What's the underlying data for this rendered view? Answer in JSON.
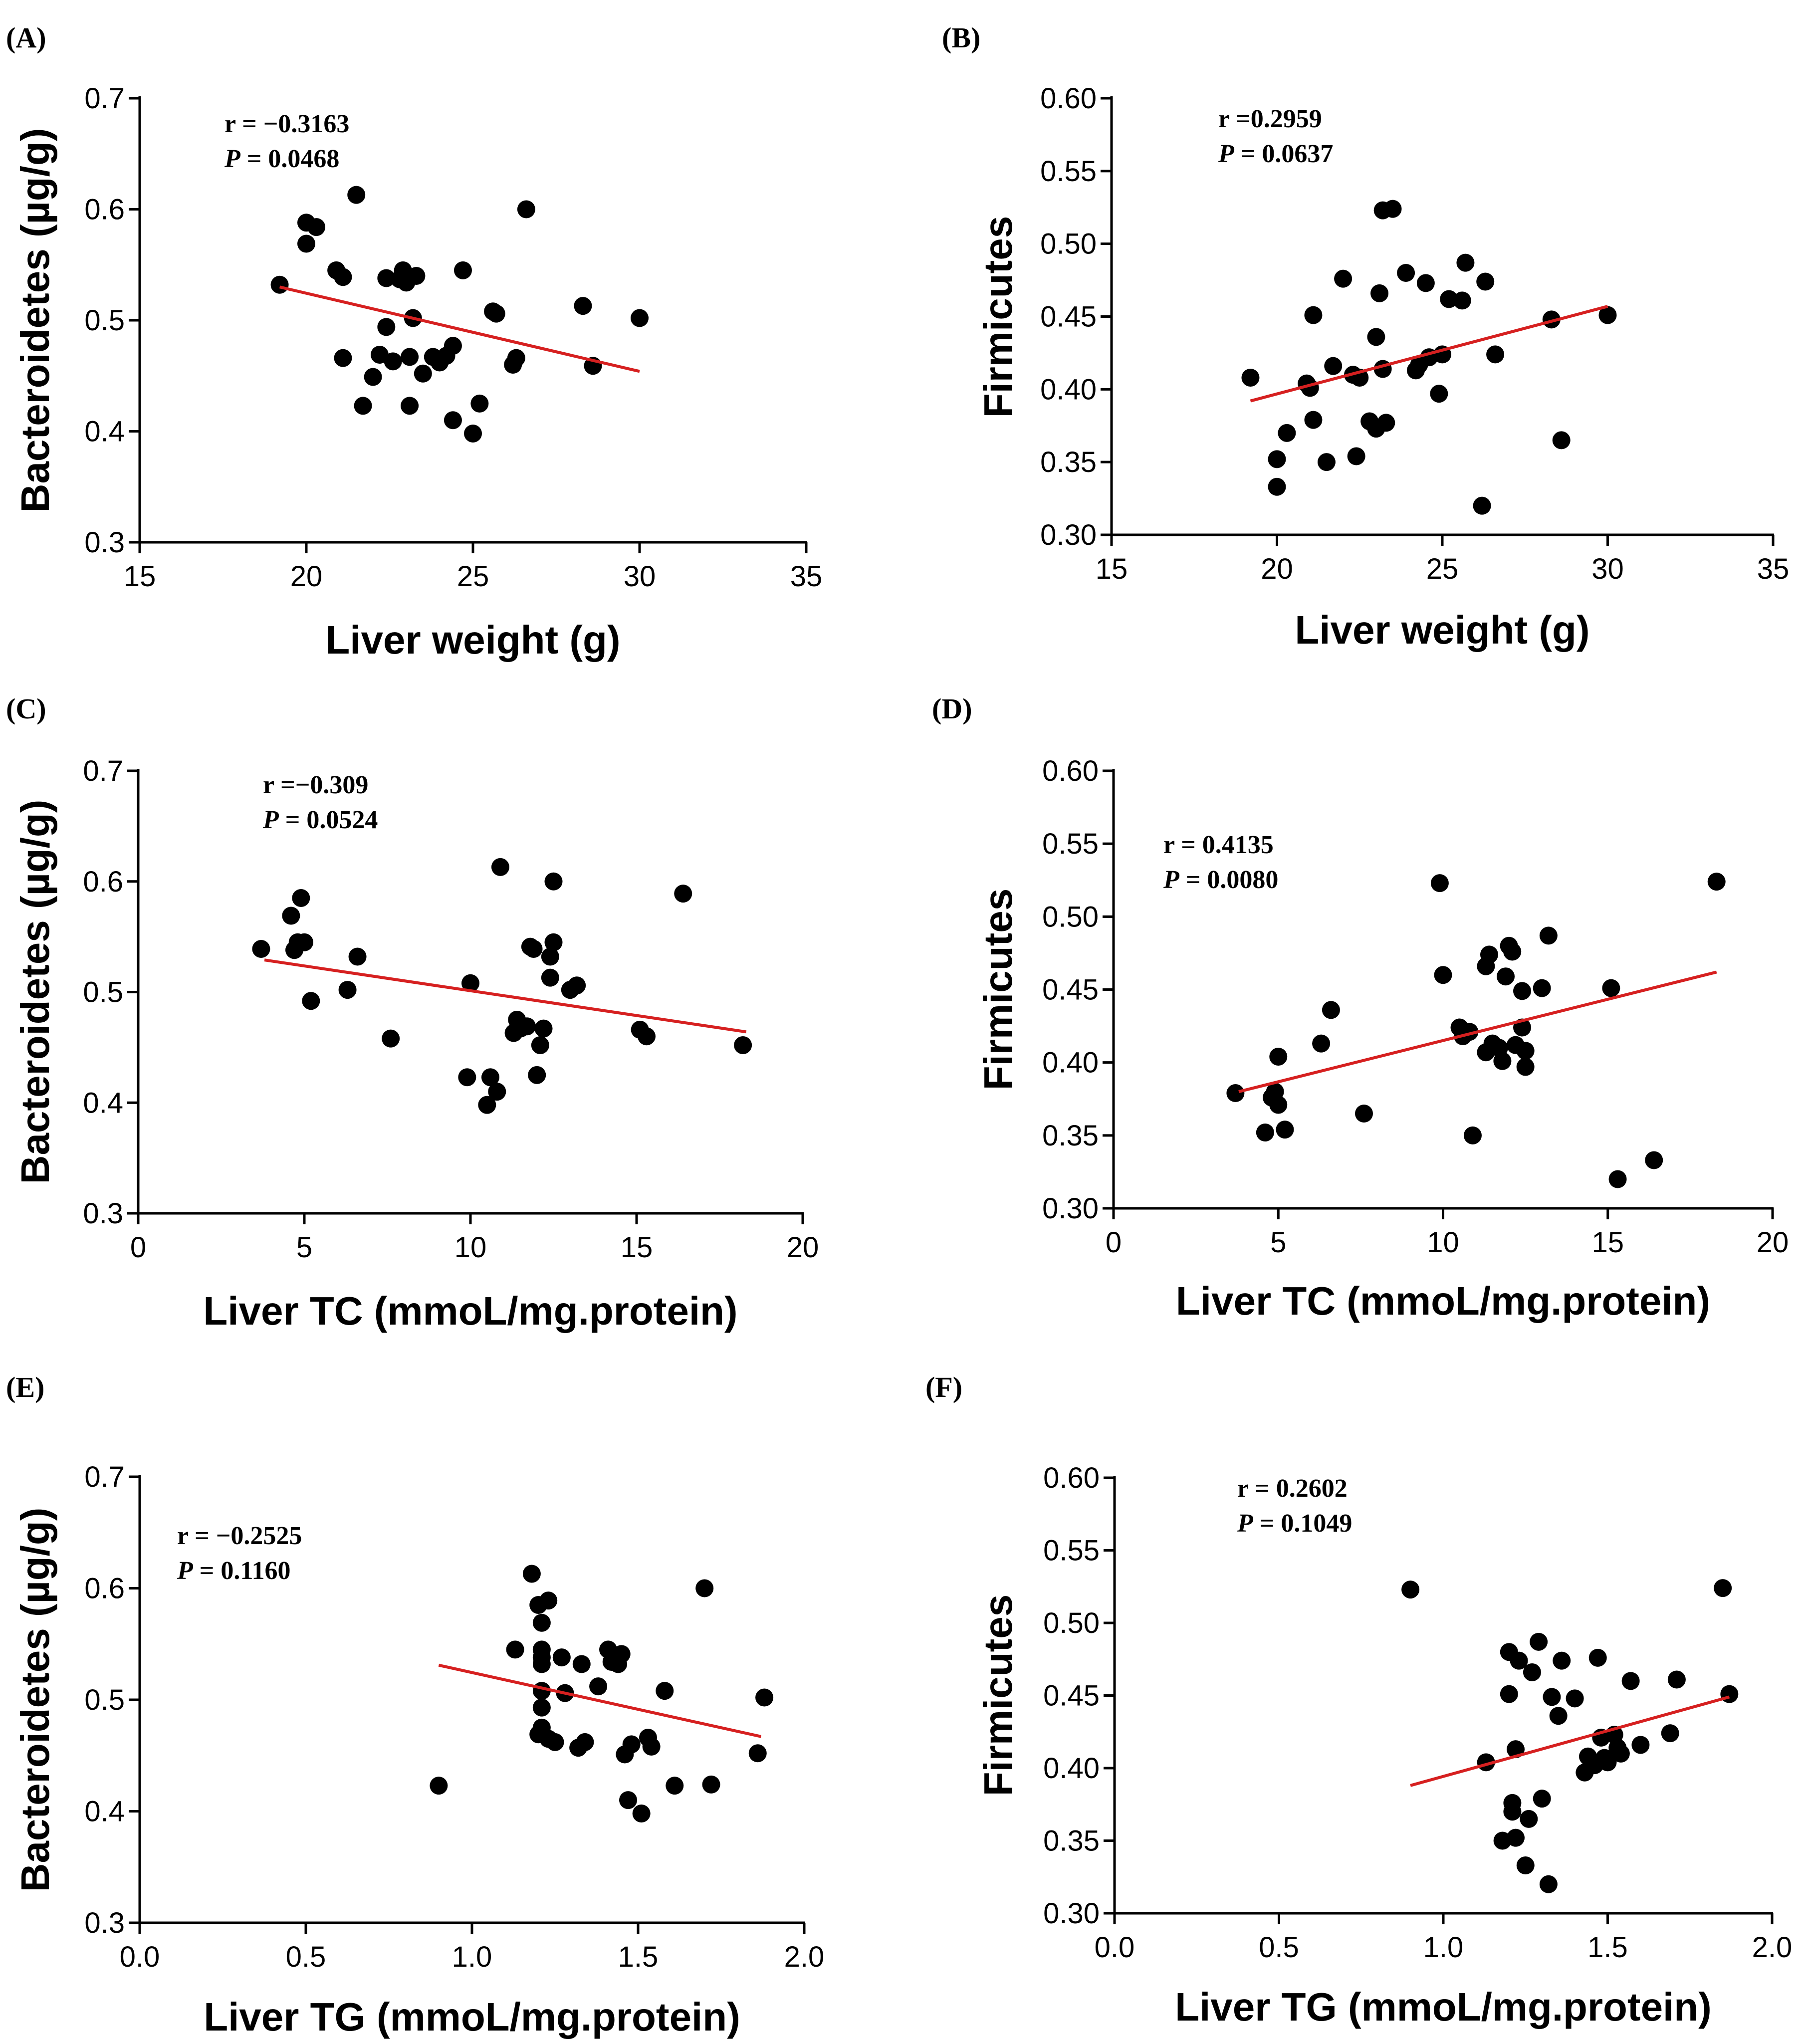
{
  "colors": {
    "points": "#000000",
    "fit_line": "#d62020",
    "axis": "#000000",
    "background": "#ffffff"
  },
  "chart_data": [
    {
      "panel": "(A)",
      "type": "scatter",
      "xlabel": "Liver weight (g)",
      "ylabel": "Bacteroidetes (µg/g)",
      "xlim": [
        15,
        35
      ],
      "ylim": [
        0.3,
        0.7
      ],
      "xticks": [
        "15",
        "20",
        "25",
        "30",
        "35"
      ],
      "yticks": [
        "0.3",
        "0.4",
        "0.5",
        "0.6",
        "0.7"
      ],
      "stats": {
        "r_label": "r = ",
        "r_value": "−0.3163",
        "p_label": "P",
        "p_value": " = 0.0468"
      },
      "fit": {
        "x": [
          19.2,
          30.0
        ],
        "y": [
          0.53,
          0.454
        ]
      },
      "points": [
        [
          19.2,
          0.532
        ],
        [
          20.0,
          0.588
        ],
        [
          20.0,
          0.569
        ],
        [
          20.3,
          0.584
        ],
        [
          20.9,
          0.545
        ],
        [
          21.1,
          0.539
        ],
        [
          21.1,
          0.466
        ],
        [
          21.5,
          0.613
        ],
        [
          21.7,
          0.423
        ],
        [
          22.0,
          0.449
        ],
        [
          22.2,
          0.469
        ],
        [
          22.4,
          0.494
        ],
        [
          22.4,
          0.538
        ],
        [
          22.6,
          0.463
        ],
        [
          22.8,
          0.537
        ],
        [
          22.9,
          0.545
        ],
        [
          23.0,
          0.534
        ],
        [
          23.1,
          0.467
        ],
        [
          23.1,
          0.423
        ],
        [
          23.2,
          0.502
        ],
        [
          23.3,
          0.54
        ],
        [
          23.5,
          0.452
        ],
        [
          23.8,
          0.467
        ],
        [
          24.0,
          0.462
        ],
        [
          24.2,
          0.468
        ],
        [
          24.4,
          0.477
        ],
        [
          24.4,
          0.41
        ],
        [
          24.7,
          0.545
        ],
        [
          25.0,
          0.398
        ],
        [
          25.2,
          0.425
        ],
        [
          25.6,
          0.508
        ],
        [
          25.7,
          0.506
        ],
        [
          26.2,
          0.46
        ],
        [
          26.3,
          0.466
        ],
        [
          26.6,
          0.6
        ],
        [
          28.3,
          0.513
        ],
        [
          28.6,
          0.459
        ],
        [
          30.0,
          0.502
        ]
      ]
    },
    {
      "panel": "(B)",
      "type": "scatter",
      "xlabel": "Liver weight (g)",
      "ylabel": "Firmicutes",
      "xlim": [
        15,
        35
      ],
      "ylim": [
        0.3,
        0.6
      ],
      "xticks": [
        "15",
        "20",
        "25",
        "30",
        "35"
      ],
      "yticks": [
        "0.30",
        "0.35",
        "0.40",
        "0.45",
        "0.50",
        "0.55",
        "0.60"
      ],
      "stats": {
        "r_label": "r =",
        "r_value": "0.2959",
        "p_label": "P",
        "p_value": " = 0.0637"
      },
      "fit": {
        "x": [
          19.2,
          30.0
        ],
        "y": [
          0.392,
          0.457
        ]
      },
      "points": [
        [
          19.2,
          0.408
        ],
        [
          20.0,
          0.352
        ],
        [
          20.0,
          0.333
        ],
        [
          20.3,
          0.37
        ],
        [
          20.9,
          0.404
        ],
        [
          21.0,
          0.401
        ],
        [
          21.1,
          0.451
        ],
        [
          21.1,
          0.379
        ],
        [
          21.5,
          0.35
        ],
        [
          21.7,
          0.416
        ],
        [
          22.0,
          0.476
        ],
        [
          22.3,
          0.41
        ],
        [
          22.5,
          0.408
        ],
        [
          22.4,
          0.354
        ],
        [
          22.8,
          0.378
        ],
        [
          23.0,
          0.373
        ],
        [
          23.0,
          0.436
        ],
        [
          23.1,
          0.466
        ],
        [
          23.2,
          0.523
        ],
        [
          23.2,
          0.414
        ],
        [
          23.3,
          0.377
        ],
        [
          23.5,
          0.524
        ],
        [
          23.9,
          0.48
        ],
        [
          24.2,
          0.413
        ],
        [
          24.3,
          0.417
        ],
        [
          24.5,
          0.473
        ],
        [
          24.6,
          0.422
        ],
        [
          24.9,
          0.397
        ],
        [
          25.0,
          0.424
        ],
        [
          25.2,
          0.462
        ],
        [
          25.6,
          0.461
        ],
        [
          25.7,
          0.487
        ],
        [
          26.2,
          0.32
        ],
        [
          26.3,
          0.474
        ],
        [
          26.6,
          0.424
        ],
        [
          28.3,
          0.448
        ],
        [
          28.6,
          0.365
        ],
        [
          30.0,
          0.451
        ]
      ]
    },
    {
      "panel": "(C)",
      "type": "scatter",
      "xlabel": "Liver TC (mmoL/mg.protein)",
      "ylabel": "Bacteroidetes (µg/g)",
      "xlim": [
        0,
        20
      ],
      "ylim": [
        0.3,
        0.7
      ],
      "xticks": [
        "0",
        "5",
        "10",
        "15",
        "20"
      ],
      "yticks": [
        "0.3",
        "0.4",
        "0.5",
        "0.6",
        "0.7"
      ],
      "stats": {
        "r_label": "r =",
        "r_value": "−0.309",
        "p_label": "P",
        "p_value": " = 0.0524"
      },
      "fit": {
        "x": [
          3.8,
          18.3
        ],
        "y": [
          0.529,
          0.464
        ]
      },
      "points": [
        [
          3.7,
          0.539
        ],
        [
          4.6,
          0.569
        ],
        [
          4.7,
          0.538
        ],
        [
          4.8,
          0.545
        ],
        [
          4.9,
          0.585
        ],
        [
          5.0,
          0.545
        ],
        [
          5.2,
          0.492
        ],
        [
          6.3,
          0.502
        ],
        [
          6.6,
          0.532
        ],
        [
          7.6,
          0.458
        ],
        [
          10.0,
          0.508
        ],
        [
          9.9,
          0.423
        ],
        [
          10.5,
          0.398
        ],
        [
          10.6,
          0.423
        ],
        [
          10.8,
          0.41
        ],
        [
          10.9,
          0.613
        ],
        [
          11.3,
          0.463
        ],
        [
          11.4,
          0.475
        ],
        [
          11.5,
          0.467
        ],
        [
          11.7,
          0.469
        ],
        [
          11.8,
          0.541
        ],
        [
          11.9,
          0.539
        ],
        [
          12.0,
          0.425
        ],
        [
          12.1,
          0.452
        ],
        [
          12.2,
          0.467
        ],
        [
          12.4,
          0.532
        ],
        [
          12.5,
          0.545
        ],
        [
          12.5,
          0.6
        ],
        [
          12.4,
          0.513
        ],
        [
          13.0,
          0.502
        ],
        [
          13.2,
          0.506
        ],
        [
          15.1,
          0.466
        ],
        [
          15.3,
          0.46
        ],
        [
          16.4,
          0.589
        ],
        [
          18.2,
          0.452
        ]
      ]
    },
    {
      "panel": "(D)",
      "type": "scatter",
      "xlabel": "Liver TC (mmoL/mg.protein)",
      "ylabel": "Firmicutes",
      "xlim": [
        0,
        20
      ],
      "ylim": [
        0.3,
        0.6
      ],
      "xticks": [
        "0",
        "5",
        "10",
        "15",
        "20"
      ],
      "yticks": [
        "0.30",
        "0.35",
        "0.40",
        "0.45",
        "0.50",
        "0.55",
        "0.60"
      ],
      "stats": {
        "r_label": "r = ",
        "r_value": "0.4135",
        "p_label": "P",
        "p_value": " = 0.0080"
      },
      "fit": {
        "x": [
          3.8,
          18.3
        ],
        "y": [
          0.38,
          0.462
        ]
      },
      "points": [
        [
          3.7,
          0.379
        ],
        [
          4.6,
          0.352
        ],
        [
          4.8,
          0.376
        ],
        [
          4.9,
          0.38
        ],
        [
          5.0,
          0.404
        ],
        [
          5.0,
          0.371
        ],
        [
          5.2,
          0.354
        ],
        [
          6.3,
          0.413
        ],
        [
          6.6,
          0.436
        ],
        [
          7.6,
          0.365
        ],
        [
          9.9,
          0.523
        ],
        [
          10.0,
          0.46
        ],
        [
          10.9,
          0.35
        ],
        [
          10.5,
          0.424
        ],
        [
          10.6,
          0.418
        ],
        [
          10.8,
          0.421
        ],
        [
          11.3,
          0.466
        ],
        [
          11.4,
          0.474
        ],
        [
          11.3,
          0.407
        ],
        [
          11.5,
          0.413
        ],
        [
          11.7,
          0.41
        ],
        [
          11.8,
          0.401
        ],
        [
          11.9,
          0.459
        ],
        [
          12.0,
          0.48
        ],
        [
          12.1,
          0.476
        ],
        [
          12.2,
          0.412
        ],
        [
          12.4,
          0.449
        ],
        [
          12.4,
          0.424
        ],
        [
          12.5,
          0.408
        ],
        [
          12.5,
          0.397
        ],
        [
          13.0,
          0.451
        ],
        [
          13.2,
          0.487
        ],
        [
          15.1,
          0.451
        ],
        [
          15.3,
          0.32
        ],
        [
          16.4,
          0.333
        ],
        [
          18.3,
          0.524
        ]
      ]
    },
    {
      "panel": "(E)",
      "type": "scatter",
      "xlabel": "Liver TG (mmoL/mg.protein)",
      "ylabel": "Bacteroidetes (µg/g)",
      "xlim": [
        0.0,
        2.0
      ],
      "ylim": [
        0.3,
        0.7
      ],
      "xticks": [
        "0.0",
        "0.5",
        "1.0",
        "1.5",
        "2.0"
      ],
      "yticks": [
        "0.3",
        "0.4",
        "0.5",
        "0.6",
        "0.7"
      ],
      "stats": {
        "r_label": "r = ",
        "r_value": "−0.2525",
        "p_label": "P",
        "p_value": " = 0.1160"
      },
      "fit": {
        "x": [
          0.9,
          1.87
        ],
        "y": [
          0.531,
          0.467
        ]
      },
      "points": [
        [
          0.9,
          0.423
        ],
        [
          1.13,
          0.545
        ],
        [
          1.18,
          0.613
        ],
        [
          1.2,
          0.585
        ],
        [
          1.2,
          0.469
        ],
        [
          1.21,
          0.569
        ],
        [
          1.21,
          0.545
        ],
        [
          1.21,
          0.538
        ],
        [
          1.21,
          0.532
        ],
        [
          1.21,
          0.508
        ],
        [
          1.21,
          0.493
        ],
        [
          1.21,
          0.475
        ],
        [
          1.23,
          0.589
        ],
        [
          1.23,
          0.465
        ],
        [
          1.25,
          0.462
        ],
        [
          1.27,
          0.538
        ],
        [
          1.28,
          0.506
        ],
        [
          1.32,
          0.457
        ],
        [
          1.33,
          0.532
        ],
        [
          1.34,
          0.462
        ],
        [
          1.38,
          0.512
        ],
        [
          1.41,
          0.545
        ],
        [
          1.42,
          0.534
        ],
        [
          1.44,
          0.532
        ],
        [
          1.45,
          0.541
        ],
        [
          1.46,
          0.451
        ],
        [
          1.47,
          0.41
        ],
        [
          1.48,
          0.46
        ],
        [
          1.51,
          0.398
        ],
        [
          1.53,
          0.466
        ],
        [
          1.54,
          0.458
        ],
        [
          1.58,
          0.508
        ],
        [
          1.61,
          0.423
        ],
        [
          1.7,
          0.6
        ],
        [
          1.72,
          0.424
        ],
        [
          1.86,
          0.452
        ],
        [
          1.88,
          0.502
        ]
      ]
    },
    {
      "panel": "(F)",
      "type": "scatter",
      "xlabel": "Liver TG (mmoL/mg.protein)",
      "ylabel": "Firmicutes",
      "xlim": [
        0.0,
        2.0
      ],
      "ylim": [
        0.3,
        0.6
      ],
      "xticks": [
        "0.0",
        "0.5",
        "1.0",
        "1.5",
        "2.0"
      ],
      "yticks": [
        "0.30",
        "0.35",
        "0.40",
        "0.45",
        "0.50",
        "0.55",
        "0.60"
      ],
      "stats": {
        "r_label": "r = ",
        "r_value": "0.2602",
        "p_label": "P",
        "p_value": " = 0.1049"
      },
      "fit": {
        "x": [
          0.9,
          1.87
        ],
        "y": [
          0.388,
          0.449
        ]
      },
      "points": [
        [
          0.9,
          0.523
        ],
        [
          1.13,
          0.404
        ],
        [
          1.18,
          0.35
        ],
        [
          1.2,
          0.451
        ],
        [
          1.2,
          0.48
        ],
        [
          1.21,
          0.37
        ],
        [
          1.21,
          0.376
        ],
        [
          1.22,
          0.413
        ],
        [
          1.22,
          0.352
        ],
        [
          1.23,
          0.474
        ],
        [
          1.25,
          0.333
        ],
        [
          1.26,
          0.365
        ],
        [
          1.27,
          0.466
        ],
        [
          1.29,
          0.487
        ],
        [
          1.3,
          0.379
        ],
        [
          1.32,
          0.32
        ],
        [
          1.33,
          0.449
        ],
        [
          1.35,
          0.436
        ],
        [
          1.36,
          0.474
        ],
        [
          1.4,
          0.448
        ],
        [
          1.43,
          0.397
        ],
        [
          1.44,
          0.408
        ],
        [
          1.46,
          0.402
        ],
        [
          1.47,
          0.476
        ],
        [
          1.48,
          0.421
        ],
        [
          1.49,
          0.407
        ],
        [
          1.5,
          0.404
        ],
        [
          1.52,
          0.423
        ],
        [
          1.53,
          0.414
        ],
        [
          1.54,
          0.41
        ],
        [
          1.57,
          0.46
        ],
        [
          1.6,
          0.416
        ],
        [
          1.69,
          0.424
        ],
        [
          1.71,
          0.461
        ],
        [
          1.85,
          0.524
        ],
        [
          1.87,
          0.451
        ]
      ]
    }
  ]
}
